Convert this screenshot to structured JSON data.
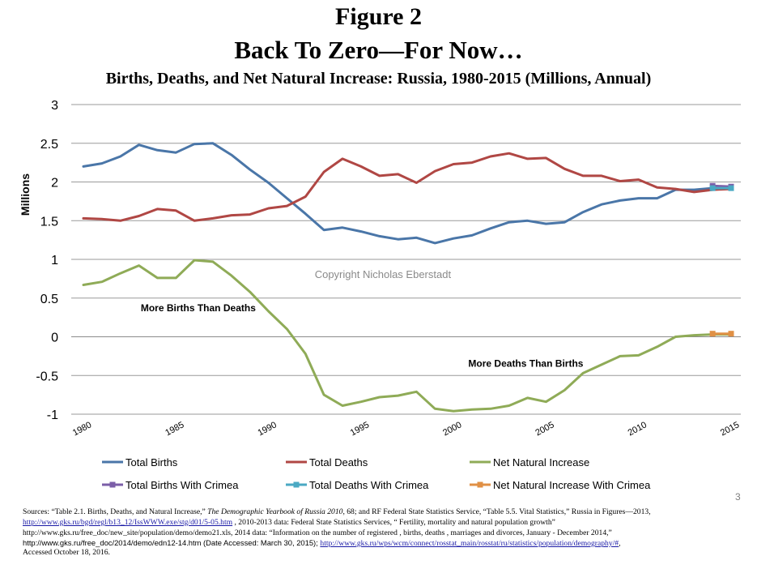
{
  "header": {
    "figure_label": "Figure 2",
    "headline": "Back To Zero—For Now…",
    "subtitle": "Births, Deaths, and Net Natural Increase: Russia, 1980-2015 (Millions, Annual)"
  },
  "chart_data": {
    "type": "line",
    "ylabel": "Millions",
    "xlabel": "",
    "ylim": [
      -1,
      3
    ],
    "yticks": [
      -1,
      -0.5,
      0,
      0.5,
      1,
      1.5,
      2,
      2.5,
      3
    ],
    "ytick_labels": [
      "-1",
      "-0.5",
      "0",
      "0.5",
      "1",
      "1.5",
      "2",
      "2.5",
      "3"
    ],
    "xlim": [
      1980,
      2015
    ],
    "xticks": [
      1980,
      1985,
      1990,
      1995,
      2000,
      2005,
      2010,
      2015
    ],
    "xtick_labels": [
      "1980",
      "1985",
      "1990",
      "1995",
      "2000",
      "2005",
      "2010",
      "2015"
    ],
    "grid": true,
    "legend_position": "bottom",
    "series": [
      {
        "name": "Total Births",
        "color": "#4a76a8",
        "marker": "none",
        "x": [
          1980,
          1981,
          1982,
          1983,
          1984,
          1985,
          1986,
          1987,
          1988,
          1989,
          1990,
          1991,
          1992,
          1993,
          1994,
          1995,
          1996,
          1997,
          1998,
          1999,
          2000,
          2001,
          2002,
          2003,
          2004,
          2005,
          2006,
          2007,
          2008,
          2009,
          2010,
          2011,
          2012,
          2013,
          2014,
          2015
        ],
        "values": [
          2.2,
          2.24,
          2.33,
          2.48,
          2.41,
          2.38,
          2.49,
          2.5,
          2.35,
          2.16,
          1.99,
          1.79,
          1.59,
          1.38,
          1.41,
          1.36,
          1.3,
          1.26,
          1.28,
          1.21,
          1.27,
          1.31,
          1.4,
          1.48,
          1.5,
          1.46,
          1.48,
          1.61,
          1.71,
          1.76,
          1.79,
          1.79,
          1.9,
          1.9,
          1.92,
          1.92
        ]
      },
      {
        "name": "Total Deaths",
        "color": "#b04744",
        "marker": "none",
        "x": [
          1980,
          1981,
          1982,
          1983,
          1984,
          1985,
          1986,
          1987,
          1988,
          1989,
          1990,
          1991,
          1992,
          1993,
          1994,
          1995,
          1996,
          1997,
          1998,
          1999,
          2000,
          2001,
          2002,
          2003,
          2004,
          2005,
          2006,
          2007,
          2008,
          2009,
          2010,
          2011,
          2012,
          2013,
          2014,
          2015
        ],
        "values": [
          1.53,
          1.52,
          1.5,
          1.56,
          1.65,
          1.63,
          1.5,
          1.53,
          1.57,
          1.58,
          1.66,
          1.69,
          1.81,
          2.13,
          2.3,
          2.2,
          2.08,
          2.1,
          1.99,
          2.14,
          2.23,
          2.25,
          2.33,
          2.37,
          2.3,
          2.31,
          2.17,
          2.08,
          2.08,
          2.01,
          2.03,
          1.93,
          1.91,
          1.87,
          1.9,
          1.91
        ]
      },
      {
        "name": "Net Natural Increase",
        "color": "#8fab57",
        "marker": "none",
        "x": [
          1980,
          1981,
          1982,
          1983,
          1984,
          1985,
          1986,
          1987,
          1988,
          1989,
          1990,
          1991,
          1992,
          1993,
          1994,
          1995,
          1996,
          1997,
          1998,
          1999,
          2000,
          2001,
          2002,
          2003,
          2004,
          2005,
          2006,
          2007,
          2008,
          2009,
          2010,
          2011,
          2012,
          2013,
          2014,
          2015
        ],
        "values": [
          0.67,
          0.71,
          0.82,
          0.92,
          0.76,
          0.76,
          0.99,
          0.97,
          0.79,
          0.58,
          0.33,
          0.1,
          -0.22,
          -0.75,
          -0.89,
          -0.84,
          -0.78,
          -0.76,
          -0.71,
          -0.93,
          -0.96,
          -0.94,
          -0.93,
          -0.89,
          -0.79,
          -0.84,
          -0.69,
          -0.47,
          -0.36,
          -0.25,
          -0.24,
          -0.13,
          0.0,
          0.02,
          0.03,
          0.03
        ]
      },
      {
        "name": "Total Births With Crimea",
        "color": "#7b5ea8",
        "marker": "square",
        "x": [
          2014,
          2015
        ],
        "values": [
          1.95,
          1.94
        ]
      },
      {
        "name": "Total Deaths With Crimea",
        "color": "#4aa9c3",
        "marker": "square",
        "x": [
          2014,
          2015
        ],
        "values": [
          1.92,
          1.92
        ]
      },
      {
        "name": "Net Natural Increase With Crimea",
        "color": "#e09045",
        "marker": "square",
        "x": [
          2014,
          2015
        ],
        "values": [
          0.04,
          0.04
        ]
      }
    ],
    "annotations": [
      {
        "text": "More Births Than Deaths",
        "x": 1983.1,
        "y": 0.33
      },
      {
        "text": "More Deaths Than Births",
        "x": 2000.8,
        "y": -0.39
      },
      {
        "text": "Copyright Nicholas Eberstadt",
        "x": 1992.5,
        "y": 0.76,
        "style": "watermark"
      }
    ]
  },
  "page_number": "3",
  "sources": {
    "line1_part1": "Sources: “Table 2.1. Births, Deaths, and Natural Increase,” ",
    "line1_italic": "The Demographic Yearbook of Russia 2010",
    "line1_part2": ", 68; and RF Federal State Statistics Service, “Table 5.5. Vital Statistics,” Russia in Figures—2013,",
    "line2_link": "http://www.gks.ru/bgd/regl/b13_12/IssWWW.exe/stg/d01/5-05.htm",
    "line2_rest": " , 2010-2013 data: Federal State Statistics Services, “ Fertility, mortality and natural population growth”",
    "line3": "http://www.gks.ru/free_doc/new_site/population/demo/demo21.xls, 2014 data: “Information on the number of registered , births, deaths , marriages and divorces, January - December 2014,”",
    "line4_part1": "http://www.gks.ru/free_doc/2014/demo/edn12-14.htm (Date Accessed: March 30, 2015); ",
    "line4_link": "http://www.gks.ru/wps/wcm/connect/rosstat_main/rosstat/ru/statistics/population/demography/#",
    "line4_end": ",",
    "line5": "Accessed October 18, 2016."
  }
}
